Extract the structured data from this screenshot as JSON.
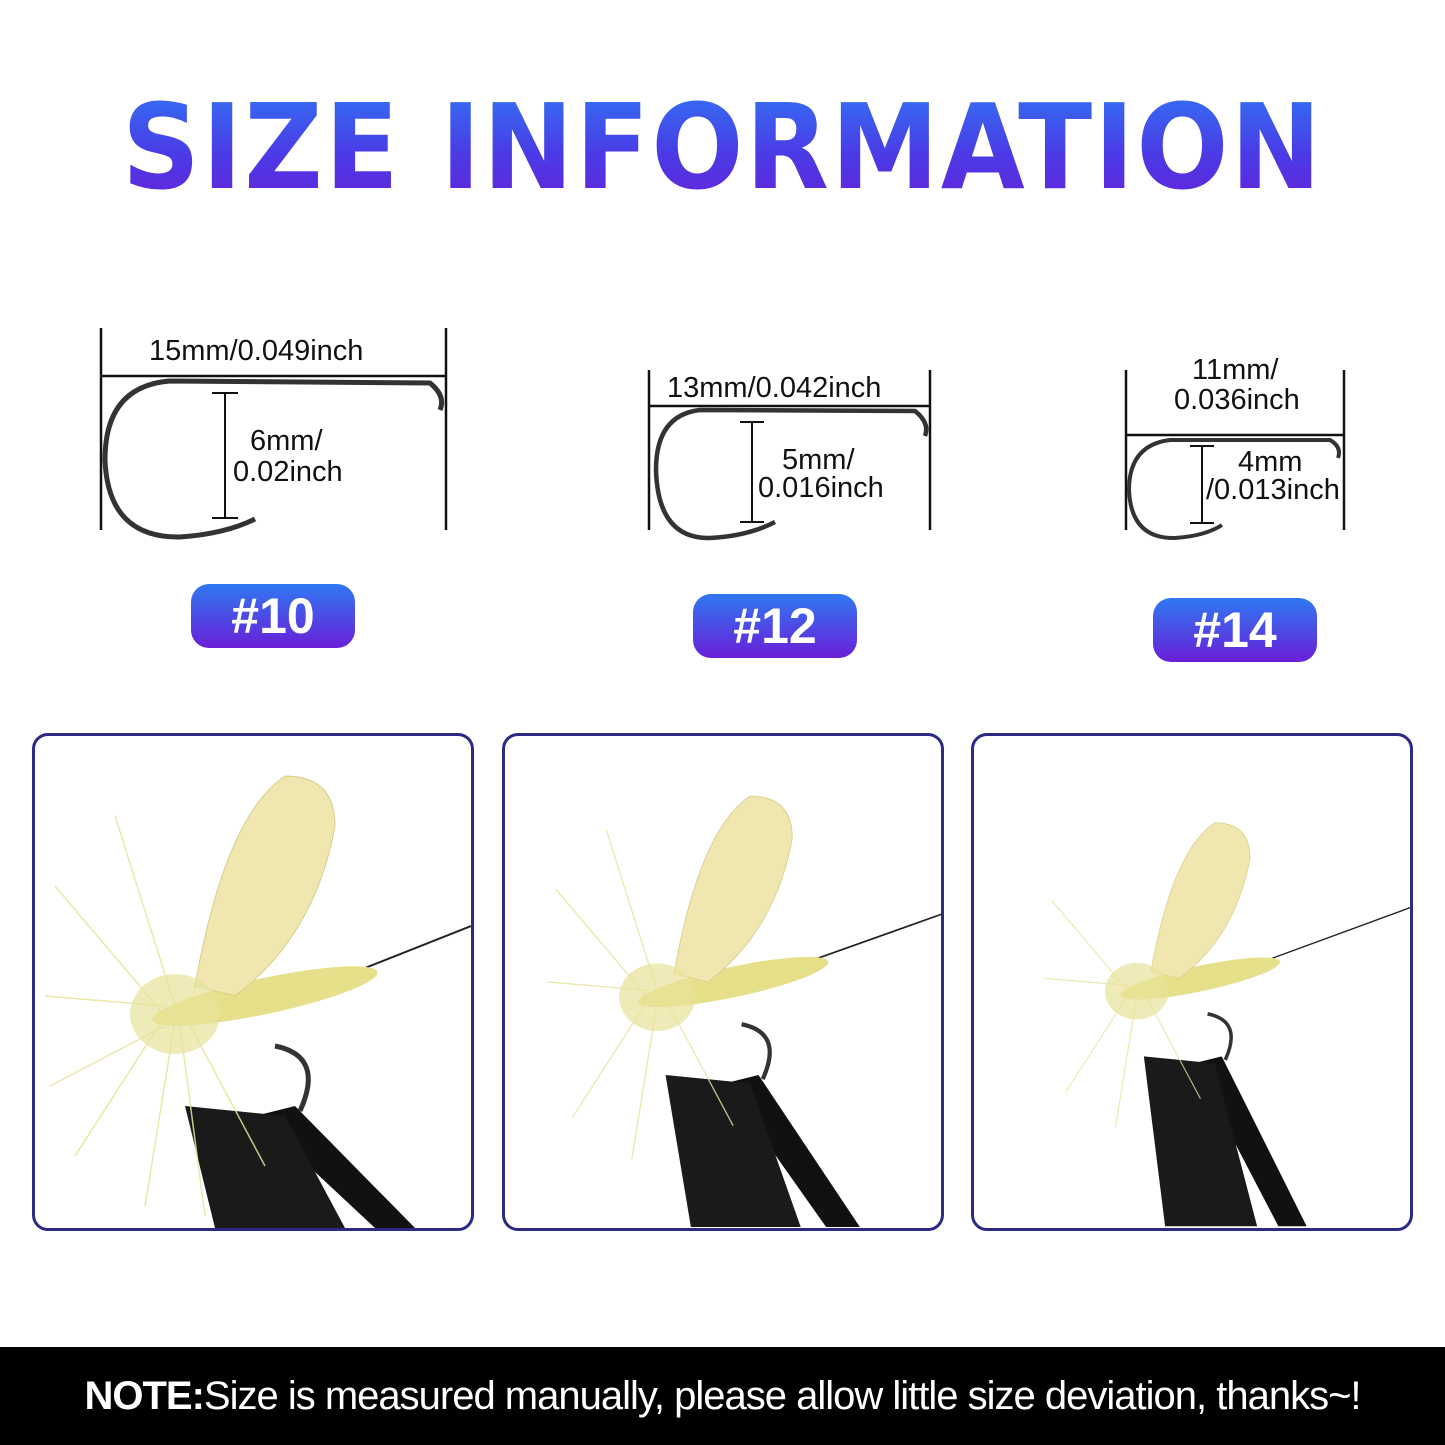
{
  "title": "SIZE INFORMATION",
  "sizes": [
    {
      "badge": "#10",
      "length": "15mm/0.049inch",
      "gap_line1": "6mm/",
      "gap_line2": "0.02inch"
    },
    {
      "badge": "#12",
      "length": "13mm/0.042inch",
      "gap_line1": "5mm/",
      "gap_line2": "0.016inch"
    },
    {
      "badge": "#14",
      "length_line1": "11mm/",
      "length_line2": "0.036inch",
      "gap_line1": "4mm",
      "gap_line2": "/0.013inch"
    }
  ],
  "note": {
    "label": "NOTE:",
    "text": "Size is measured manually, please allow little size deviation, thanks~!"
  },
  "colors": {
    "gradient_top": "#2f78f2",
    "gradient_bottom": "#6a1fd8",
    "frame": "#2b2a85",
    "fly": "#e6e08a"
  }
}
